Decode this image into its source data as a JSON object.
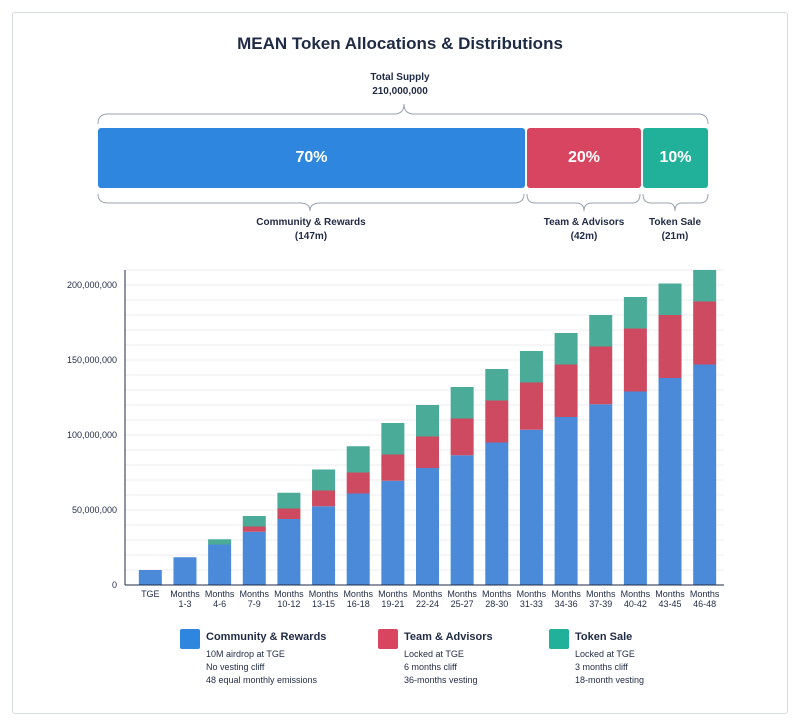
{
  "chart_title": "MEAN Token Allocations & Distributions",
  "total_supply": {
    "label": "Total Supply",
    "value": "210,000,000"
  },
  "allocation": [
    {
      "name": "Community & Rewards",
      "amount": "(147m)",
      "percent_label": "70%",
      "share": 70,
      "color": "#2e86de"
    },
    {
      "name": "Team & Advisors",
      "amount": "(42m)",
      "percent_label": "20%",
      "share": 20,
      "color": "#d74560"
    },
    {
      "name": "Token Sale",
      "amount": "(21m)",
      "percent_label": "10%",
      "share": 10,
      "color": "#21b19a"
    }
  ],
  "chart_data": {
    "type": "bar",
    "stacked": true,
    "title": "MEAN Token Allocations & Distributions",
    "xlabel": "",
    "ylabel": "",
    "ylim": [
      0,
      210000000
    ],
    "y_ticks": [
      "0",
      "50,000,000",
      "100,000,000",
      "150,000,000",
      "200,000,000"
    ],
    "categories": [
      [
        "TGE"
      ],
      [
        "Months",
        "1-3"
      ],
      [
        "Months",
        "4-6"
      ],
      [
        "Months",
        "7-9"
      ],
      [
        "Months",
        "10-12"
      ],
      [
        "Months",
        "13-15"
      ],
      [
        "Months",
        "16-18"
      ],
      [
        "Months",
        "19-21"
      ],
      [
        "Months",
        "22-24"
      ],
      [
        "Months",
        "25-27"
      ],
      [
        "Months",
        "28-30"
      ],
      [
        "Months",
        "31-33"
      ],
      [
        "Months",
        "34-36"
      ],
      [
        "Months",
        "37-39"
      ],
      [
        "Months",
        "40-42"
      ],
      [
        "Months",
        "43-45"
      ],
      [
        "Months",
        "46-48"
      ]
    ],
    "series": [
      {
        "name": "Community & Rewards",
        "color": "#4a8ad8",
        "values": [
          10000000,
          18500000,
          27000000,
          35500000,
          44000000,
          52500000,
          61000000,
          69500000,
          78000000,
          86500000,
          95000000,
          103500000,
          112000000,
          120500000,
          129000000,
          138000000,
          147000000
        ]
      },
      {
        "name": "Team & Advisors",
        "color": "#cd4a60",
        "values": [
          0,
          0,
          0,
          3500000,
          7000000,
          10500000,
          14000000,
          17500000,
          21000000,
          24500000,
          28000000,
          31500000,
          35000000,
          38500000,
          42000000,
          42000000,
          42000000
        ]
      },
      {
        "name": "Token Sale",
        "color": "#4aab98",
        "values": [
          0,
          0,
          3500000,
          7000000,
          10500000,
          14000000,
          17500000,
          21000000,
          21000000,
          21000000,
          21000000,
          21000000,
          21000000,
          21000000,
          21000000,
          21000000,
          21000000
        ]
      }
    ],
    "legend_placement": "bottom",
    "grid": true
  },
  "legend": [
    {
      "name": "Community & Rewards",
      "color": "#2e86de",
      "notes": [
        "10M airdrop at TGE",
        "No vesting cliff",
        "48 equal monthly emissions"
      ]
    },
    {
      "name": "Team & Advisors",
      "color": "#d74560",
      "notes": [
        "Locked at TGE",
        "6 months cliff",
        "36-months vesting"
      ]
    },
    {
      "name": "Token Sale",
      "color": "#21b19a",
      "notes": [
        "Locked at TGE",
        "3 months cliff",
        "18-month vesting"
      ]
    }
  ]
}
